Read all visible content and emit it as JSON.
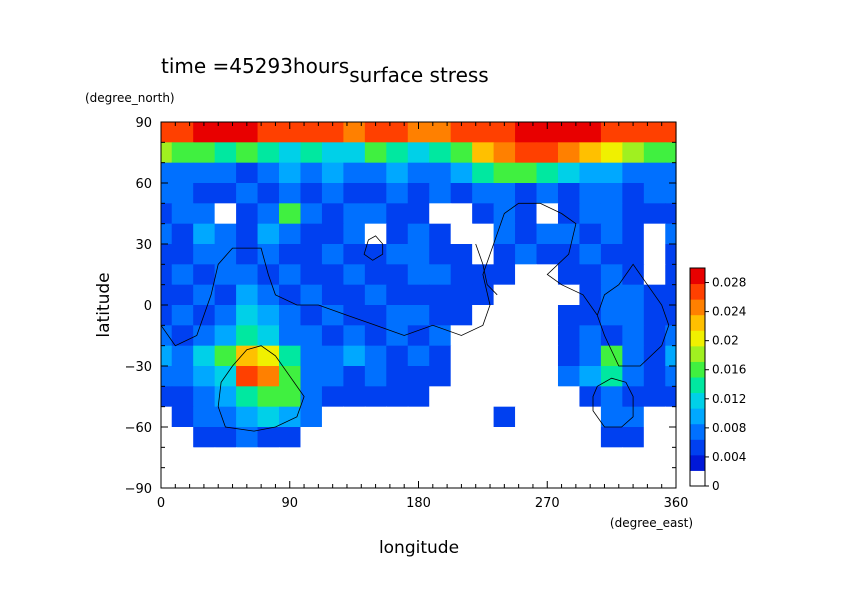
{
  "chart_data": {
    "type": "heatmap",
    "time_label": "time =45293hours",
    "title": "surface stress",
    "xlabel": "longitude",
    "ylabel": "latitude",
    "x_unit": "(degree_east)",
    "y_unit": "(degree_north)",
    "xlim": [
      0,
      360
    ],
    "ylim": [
      -90,
      90
    ],
    "x_ticks": [
      "0",
      "90",
      "180",
      "270",
      "360"
    ],
    "x_tick_values": [
      0,
      90,
      180,
      270,
      360
    ],
    "y_ticks": [
      "90",
      "60",
      "30",
      "0",
      "−30",
      "−60",
      "−90"
    ],
    "y_tick_values": [
      90,
      60,
      30,
      0,
      -30,
      -60,
      -90
    ],
    "colorbar": {
      "range": [
        0,
        0.03
      ],
      "tick_labels": [
        "0.028",
        "0.024",
        "0.02",
        "0.016",
        "0.012",
        "0.008",
        "0.004",
        "0"
      ],
      "tick_values": [
        0.028,
        0.024,
        0.02,
        0.016,
        0.012,
        0.008,
        0.004,
        0
      ],
      "colors": [
        "#ffffff",
        "#0018d8",
        "#0040f0",
        "#0070ff",
        "#00a8ff",
        "#00d0e8",
        "#00e8a0",
        "#40f040",
        "#a0f020",
        "#f0f000",
        "#ffc000",
        "#ff8000",
        "#ff4000",
        "#e80000"
      ]
    },
    "grid_lons": [
      0,
      15,
      30,
      45,
      60,
      75,
      90,
      105,
      120,
      135,
      150,
      165,
      180,
      195,
      210,
      225,
      240,
      255,
      270,
      285,
      300,
      315,
      330,
      345,
      360
    ],
    "grid_lats": [
      85,
      75,
      65,
      55,
      45,
      35,
      25,
      15,
      5,
      -5,
      -15,
      -25,
      -35,
      -45,
      -55,
      -65,
      -75
    ],
    "values": [
      [
        0.026,
        0.027,
        0.028,
        0.028,
        0.028,
        0.027,
        0.027,
        0.026,
        0.026,
        0.025,
        0.026,
        0.026,
        0.025,
        0.025,
        0.026,
        0.027,
        0.027,
        0.028,
        0.028,
        0.028,
        0.028,
        0.027,
        0.026,
        0.026,
        0.026
      ],
      [
        0.018,
        0.016,
        0.015,
        0.013,
        0.014,
        0.012,
        0.011,
        0.012,
        0.01,
        0.011,
        0.014,
        0.013,
        0.01,
        0.012,
        0.016,
        0.021,
        0.024,
        0.026,
        0.026,
        0.025,
        0.022,
        0.02,
        0.018,
        0.016,
        0.016
      ],
      [
        0.006,
        0.005,
        0.006,
        0.005,
        0.004,
        0.005,
        0.007,
        0.006,
        0.008,
        0.006,
        0.005,
        0.007,
        0.006,
        0.006,
        0.008,
        0.012,
        0.014,
        0.015,
        0.012,
        0.01,
        0.009,
        0.008,
        0.006,
        0.006,
        0.006
      ],
      [
        0.005,
        0.006,
        0.004,
        0.003,
        0.005,
        0.004,
        0.006,
        0.004,
        0.005,
        0.003,
        0.004,
        0.005,
        0.004,
        0.006,
        0.004,
        0.005,
        0.006,
        0.004,
        0.006,
        0.004,
        0.006,
        0.005,
        0.004,
        0.006,
        0.005
      ],
      [
        0.004,
        0.005,
        0.006,
        0.0,
        0.004,
        0.006,
        0.014,
        0.005,
        0.004,
        0.006,
        0.005,
        0.004,
        0.003,
        0.0,
        0.0,
        0.004,
        0.006,
        0.004,
        0.0,
        0.004,
        0.006,
        0.005,
        0.004,
        0.004,
        0.004
      ],
      [
        0.005,
        0.004,
        0.008,
        0.006,
        0.004,
        0.007,
        0.006,
        0.004,
        0.003,
        0.006,
        0.0,
        0.004,
        0.006,
        0.003,
        0.0,
        0.0,
        0.005,
        0.004,
        0.006,
        0.005,
        0.004,
        0.006,
        0.004,
        0.0,
        0.005
      ],
      [
        0.004,
        0.003,
        0.005,
        0.006,
        0.004,
        0.005,
        0.004,
        0.003,
        0.005,
        0.004,
        0.004,
        0.005,
        0.006,
        0.004,
        0.003,
        0.0,
        0.004,
        0.006,
        0.003,
        0.004,
        0.005,
        0.004,
        0.004,
        0.0,
        0.004
      ],
      [
        0.003,
        0.005,
        0.004,
        0.006,
        0.005,
        0.004,
        0.005,
        0.003,
        0.004,
        0.005,
        0.004,
        0.003,
        0.005,
        0.006,
        0.004,
        0.004,
        0.004,
        0.0,
        0.0,
        0.004,
        0.004,
        0.006,
        0.004,
        0.0,
        0.003
      ],
      [
        0.004,
        0.004,
        0.005,
        0.004,
        0.008,
        0.006,
        0.004,
        0.005,
        0.004,
        0.004,
        0.005,
        0.004,
        0.004,
        0.004,
        0.003,
        0.004,
        0.0,
        0.0,
        0.0,
        0.0,
        0.004,
        0.005,
        0.006,
        0.004,
        0.004
      ],
      [
        0.003,
        0.005,
        0.004,
        0.006,
        0.01,
        0.008,
        0.005,
        0.004,
        0.005,
        0.003,
        0.004,
        0.005,
        0.006,
        0.004,
        0.004,
        0.0,
        0.0,
        0.0,
        0.0,
        0.003,
        0.004,
        0.006,
        0.005,
        0.003,
        0.003
      ],
      [
        0.005,
        0.004,
        0.006,
        0.008,
        0.012,
        0.01,
        0.006,
        0.005,
        0.004,
        0.005,
        0.004,
        0.005,
        0.004,
        0.005,
        0.0,
        0.0,
        0.0,
        0.0,
        0.0,
        0.004,
        0.005,
        0.004,
        0.006,
        0.004,
        0.005
      ],
      [
        0.008,
        0.006,
        0.01,
        0.014,
        0.022,
        0.02,
        0.012,
        0.006,
        0.006,
        0.008,
        0.005,
        0.004,
        0.006,
        0.004,
        0.0,
        0.0,
        0.0,
        0.0,
        0.0,
        0.004,
        0.006,
        0.016,
        0.005,
        0.004,
        0.008
      ],
      [
        0.005,
        0.006,
        0.008,
        0.01,
        0.026,
        0.024,
        0.016,
        0.005,
        0.006,
        0.004,
        0.005,
        0.004,
        0.004,
        0.003,
        0.0,
        0.0,
        0.0,
        0.0,
        0.0,
        0.005,
        0.008,
        0.012,
        0.006,
        0.004,
        0.005
      ],
      [
        0.003,
        0.004,
        0.006,
        0.008,
        0.012,
        0.014,
        0.016,
        0.006,
        0.004,
        0.003,
        0.003,
        0.004,
        0.003,
        0.0,
        0.0,
        0.0,
        0.0,
        0.0,
        0.0,
        0.0,
        0.004,
        0.006,
        0.004,
        0.003,
        0.003
      ],
      [
        0.0,
        0.003,
        0.005,
        0.006,
        0.008,
        0.01,
        0.008,
        0.005,
        0.0,
        0.0,
        0.0,
        0.0,
        0.0,
        0.0,
        0.0,
        0.0,
        0.004,
        0.0,
        0.0,
        0.0,
        0.0,
        0.005,
        0.005,
        0.0,
        0.0
      ],
      [
        0.0,
        0.0,
        0.003,
        0.004,
        0.005,
        0.004,
        0.004,
        0.0,
        0.0,
        0.0,
        0.0,
        0.0,
        0.0,
        0.0,
        0.0,
        0.0,
        0.0,
        0.0,
        0.0,
        0.0,
        0.0,
        0.004,
        0.004,
        0.0,
        0.0
      ],
      [
        0.0,
        0.0,
        0.0,
        0.0,
        0.0,
        0.0,
        0.0,
        0.0,
        0.0,
        0.0,
        0.0,
        0.0,
        0.0,
        0.0,
        0.0,
        0.0,
        0.0,
        0.0,
        0.0,
        0.0,
        0.0,
        0.0,
        0.0,
        0.0,
        0.0
      ]
    ],
    "coastlines": [
      [
        [
          0,
          -10
        ],
        [
          10,
          -20
        ],
        [
          25,
          -15
        ],
        [
          35,
          5
        ],
        [
          40,
          20
        ],
        [
          50,
          28
        ],
        [
          70,
          28
        ],
        [
          75,
          15
        ],
        [
          80,
          5
        ],
        [
          95,
          0
        ],
        [
          110,
          0
        ],
        [
          130,
          -5
        ],
        [
          150,
          -10
        ],
        [
          170,
          -15
        ],
        [
          190,
          -10
        ],
        [
          210,
          -15
        ],
        [
          225,
          -10
        ],
        [
          230,
          0
        ],
        [
          225,
          15
        ],
        [
          230,
          25
        ]
      ],
      [
        [
          230,
          25
        ],
        [
          235,
          35
        ],
        [
          240,
          45
        ],
        [
          250,
          50
        ],
        [
          265,
          50
        ],
        [
          280,
          45
        ],
        [
          290,
          40
        ],
        [
          285,
          25
        ],
        [
          270,
          15
        ],
        [
          280,
          10
        ],
        [
          295,
          5
        ],
        [
          305,
          -5
        ]
      ],
      [
        [
          305,
          -5
        ],
        [
          310,
          -15
        ],
        [
          320,
          -30
        ],
        [
          335,
          -30
        ],
        [
          350,
          -20
        ],
        [
          355,
          -10
        ],
        [
          350,
          0
        ],
        [
          340,
          10
        ],
        [
          330,
          20
        ],
        [
          320,
          10
        ],
        [
          310,
          5
        ],
        [
          305,
          -5
        ]
      ],
      [
        [
          50,
          -30
        ],
        [
          60,
          -22
        ],
        [
          70,
          -20
        ],
        [
          80,
          -25
        ],
        [
          90,
          -35
        ],
        [
          100,
          -45
        ],
        [
          95,
          -55
        ],
        [
          80,
          -60
        ],
        [
          65,
          -62
        ],
        [
          45,
          -60
        ],
        [
          40,
          -50
        ],
        [
          42,
          -38
        ],
        [
          50,
          -30
        ]
      ],
      [
        [
          305,
          -40
        ],
        [
          315,
          -36
        ],
        [
          325,
          -38
        ],
        [
          330,
          -45
        ],
        [
          330,
          -55
        ],
        [
          322,
          -60
        ],
        [
          310,
          -60
        ],
        [
          302,
          -52
        ],
        [
          302,
          -45
        ],
        [
          305,
          -40
        ]
      ],
      [
        [
          155,
          30
        ],
        [
          150,
          34
        ],
        [
          145,
          32
        ],
        [
          142,
          25
        ],
        [
          148,
          22
        ],
        [
          155,
          25
        ],
        [
          155,
          30
        ]
      ],
      [
        [
          220,
          30
        ],
        [
          225,
          20
        ],
        [
          228,
          10
        ],
        [
          235,
          5
        ]
      ]
    ]
  }
}
